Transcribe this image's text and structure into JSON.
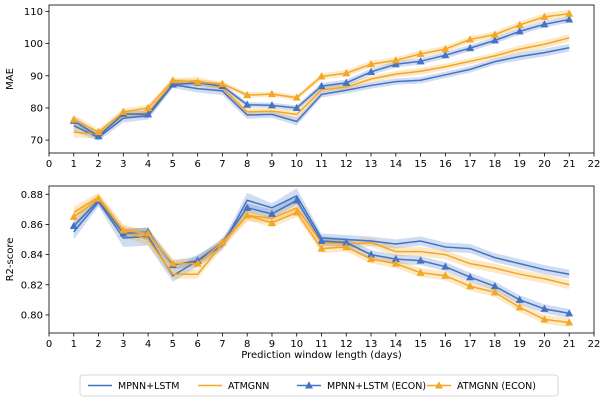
{
  "chart_data": [
    {
      "type": "line",
      "ylabel": "MAE",
      "xlabel": "",
      "xlim": [
        0,
        22
      ],
      "ylim": [
        66,
        112
      ],
      "xticks": [
        "0",
        "1",
        "2",
        "3",
        "4",
        "5",
        "6",
        "7",
        "8",
        "9",
        "10",
        "11",
        "12",
        "13",
        "14",
        "15",
        "16",
        "17",
        "18",
        "19",
        "20",
        "21",
        "22"
      ],
      "yticks": [
        "70",
        "80",
        "90",
        "100",
        "110"
      ],
      "ytick_values": [
        70,
        80,
        90,
        100,
        110
      ],
      "x": [
        1,
        2,
        3,
        4,
        5,
        6,
        7,
        8,
        9,
        10,
        11,
        12,
        13,
        14,
        15,
        16,
        17,
        18,
        19,
        20,
        21
      ],
      "series": [
        {
          "name": "MPNN+LSTM",
          "color": "#4472c4",
          "marker": "none",
          "values": [
            74.5,
            70.8,
            76.8,
            77.6,
            87.2,
            86.0,
            85.3,
            77.8,
            78.0,
            75.8,
            84.2,
            85.5,
            87.0,
            88.2,
            88.6,
            90.3,
            92.0,
            94.4,
            96.0,
            97.2,
            98.7
          ],
          "band": [
            1.8,
            1.0,
            1.3,
            1.2,
            1.0,
            1.2,
            1.3,
            1.2,
            1.0,
            1.2,
            1.0,
            1.0,
            1.0,
            1.0,
            1.0,
            1.0,
            1.0,
            1.0,
            1.2,
            1.2,
            1.2
          ]
        },
        {
          "name": "ATMGNN",
          "color": "#f5a623",
          "marker": "none",
          "values": [
            72.5,
            71.8,
            77.6,
            78.5,
            88.0,
            88.5,
            86.2,
            78.8,
            79.0,
            78.0,
            85.6,
            86.5,
            89.0,
            90.5,
            91.4,
            92.8,
            94.5,
            96.2,
            98.3,
            99.8,
            101.8
          ],
          "band": [
            1.8,
            1.2,
            1.0,
            1.0,
            1.0,
            1.2,
            1.5,
            1.2,
            1.0,
            1.5,
            1.0,
            1.0,
            1.0,
            1.0,
            1.0,
            1.0,
            1.0,
            1.0,
            1.2,
            1.2,
            1.2
          ]
        },
        {
          "name": "MPNN+LSTM (ECON)",
          "color": "#4472c4",
          "marker": "triangle",
          "values": [
            76.0,
            71.2,
            78.2,
            78.0,
            87.3,
            87.8,
            86.8,
            81.0,
            80.8,
            80.0,
            86.8,
            87.8,
            91.2,
            93.6,
            94.5,
            96.4,
            98.6,
            101.0,
            103.8,
            106.0,
            107.5
          ],
          "band": [
            1.5,
            1.0,
            1.0,
            1.2,
            0.8,
            0.8,
            0.8,
            0.8,
            0.8,
            0.8,
            1.0,
            1.0,
            1.0,
            1.0,
            1.0,
            1.0,
            1.0,
            1.0,
            1.0,
            1.0,
            1.0
          ]
        },
        {
          "name": "ATMGNN (ECON)",
          "color": "#f5a623",
          "marker": "triangle",
          "values": [
            76.4,
            72.5,
            78.8,
            80.0,
            88.6,
            88.0,
            87.5,
            84.0,
            84.3,
            83.2,
            89.8,
            90.8,
            93.6,
            94.8,
            96.8,
            98.3,
            101.3,
            102.8,
            105.8,
            108.3,
            109.3
          ],
          "band": [
            1.5,
            1.0,
            1.0,
            1.0,
            0.8,
            0.8,
            0.8,
            0.8,
            0.8,
            0.8,
            1.0,
            1.0,
            1.0,
            1.0,
            1.0,
            1.0,
            1.0,
            1.0,
            1.0,
            1.2,
            1.2
          ]
        }
      ]
    },
    {
      "type": "line",
      "ylabel": "R2-score",
      "xlabel": "Prediction window length (days)",
      "xlim": [
        0,
        22
      ],
      "ylim": [
        0.788,
        0.8855
      ],
      "xticks": [
        "0",
        "1",
        "2",
        "3",
        "4",
        "5",
        "6",
        "7",
        "8",
        "9",
        "10",
        "11",
        "12",
        "13",
        "14",
        "15",
        "16",
        "17",
        "18",
        "19",
        "20",
        "21",
        "22"
      ],
      "yticks": [
        "0.80",
        "0.82",
        "0.84",
        "0.86",
        "0.88"
      ],
      "ytick_values": [
        0.8,
        0.82,
        0.84,
        0.86,
        0.88
      ],
      "x": [
        1,
        2,
        3,
        4,
        5,
        6,
        7,
        8,
        9,
        10,
        11,
        12,
        13,
        14,
        15,
        16,
        17,
        18,
        19,
        20,
        21
      ],
      "series": [
        {
          "name": "MPNN+LSTM",
          "color": "#4472c4",
          "marker": "none",
          "values": [
            0.855,
            0.875,
            0.851,
            0.852,
            0.826,
            0.836,
            0.846,
            0.876,
            0.871,
            0.879,
            0.851,
            0.85,
            0.849,
            0.847,
            0.849,
            0.845,
            0.844,
            0.838,
            0.834,
            0.83,
            0.827
          ],
          "band": [
            0.005,
            0.003,
            0.006,
            0.006,
            0.004,
            0.004,
            0.003,
            0.005,
            0.003,
            0.005,
            0.003,
            0.003,
            0.003,
            0.003,
            0.003,
            0.003,
            0.003,
            0.003,
            0.003,
            0.003,
            0.003
          ]
        },
        {
          "name": "ATMGNN",
          "color": "#f5a623",
          "marker": "none",
          "values": [
            0.868,
            0.878,
            0.856,
            0.85,
            0.827,
            0.827,
            0.847,
            0.866,
            0.864,
            0.871,
            0.848,
            0.847,
            0.848,
            0.842,
            0.842,
            0.84,
            0.834,
            0.831,
            0.827,
            0.824,
            0.82
          ],
          "band": [
            0.004,
            0.003,
            0.004,
            0.004,
            0.003,
            0.003,
            0.003,
            0.004,
            0.003,
            0.004,
            0.003,
            0.003,
            0.003,
            0.003,
            0.003,
            0.003,
            0.003,
            0.003,
            0.003,
            0.003,
            0.003
          ]
        },
        {
          "name": "MPNN+LSTM (ECON)",
          "color": "#4472c4",
          "marker": "triangle",
          "values": [
            0.859,
            0.876,
            0.854,
            0.855,
            0.833,
            0.836,
            0.848,
            0.871,
            0.867,
            0.876,
            0.849,
            0.848,
            0.84,
            0.837,
            0.836,
            0.832,
            0.825,
            0.819,
            0.81,
            0.804,
            0.801
          ],
          "band": [
            0.004,
            0.003,
            0.003,
            0.003,
            0.003,
            0.003,
            0.003,
            0.003,
            0.003,
            0.003,
            0.003,
            0.003,
            0.003,
            0.003,
            0.003,
            0.003,
            0.003,
            0.003,
            0.003,
            0.003,
            0.003
          ]
        },
        {
          "name": "ATMGNN (ECON)",
          "color": "#f5a623",
          "marker": "triangle",
          "values": [
            0.865,
            0.877,
            0.856,
            0.854,
            0.834,
            0.834,
            0.848,
            0.866,
            0.861,
            0.868,
            0.844,
            0.845,
            0.837,
            0.834,
            0.828,
            0.826,
            0.819,
            0.815,
            0.805,
            0.797,
            0.795
          ],
          "band": [
            0.004,
            0.003,
            0.003,
            0.003,
            0.003,
            0.003,
            0.003,
            0.003,
            0.003,
            0.003,
            0.003,
            0.003,
            0.003,
            0.003,
            0.003,
            0.003,
            0.003,
            0.003,
            0.003,
            0.003,
            0.003
          ]
        }
      ]
    }
  ],
  "legend": {
    "position": "bottom-center",
    "entries": [
      {
        "label": "MPNN+LSTM",
        "color": "#4472c4",
        "marker": "none"
      },
      {
        "label": "ATMGNN",
        "color": "#f5a623",
        "marker": "none"
      },
      {
        "label": "MPNN+LSTM (ECON)",
        "color": "#4472c4",
        "marker": "triangle"
      },
      {
        "label": "ATMGNN (ECON)",
        "color": "#f5a623",
        "marker": "triangle"
      }
    ]
  }
}
